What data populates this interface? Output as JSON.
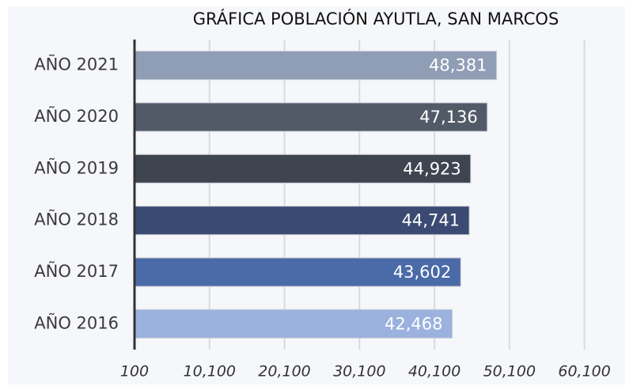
{
  "chart_data": {
    "type": "barh",
    "title": "GRÁFICA POBLACIÓN AYUTLA, SAN MARCOS",
    "categories": [
      "AÑO 2021",
      "AÑO 2020",
      "AÑO 2019",
      "AÑO 2018",
      "AÑO 2017",
      "AÑO 2016"
    ],
    "values": [
      48381,
      47136,
      44923,
      44741,
      43602,
      42468
    ],
    "value_labels": [
      "48,381",
      "47,136",
      "44,923",
      "44,741",
      "43,602",
      "42,468"
    ],
    "colors": [
      "#8f9db5",
      "#525a68",
      "#3e4550",
      "#3b4a72",
      "#4a6aa8",
      "#9bb1de"
    ],
    "xlim": [
      100,
      65100
    ],
    "xticks": [
      100,
      {
        "value": 10100,
        "label": "10,100"
      },
      {
        "value": 20100,
        "label": "20,100"
      },
      {
        "value": 30100,
        "label": "30,100"
      },
      {
        "value": 40100,
        "label": "40,100"
      },
      {
        "value": 50100,
        "label": "50,100"
      },
      {
        "value": 60100,
        "label": "60,100"
      }
    ],
    "grid": true
  }
}
